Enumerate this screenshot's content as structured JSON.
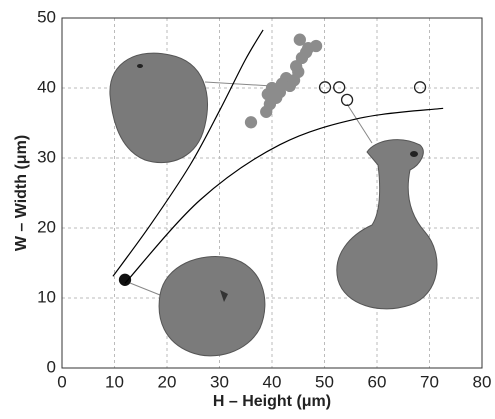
{
  "chart_data": {
    "type": "scatter",
    "x_label": "H – Height (μm)",
    "y_label": "W – Width (μm)",
    "xlim": [
      0,
      80
    ],
    "ylim": [
      0,
      50
    ],
    "xticks": [
      0,
      10,
      20,
      30,
      40,
      50,
      60,
      70,
      80
    ],
    "yticks": [
      0,
      10,
      20,
      30,
      40,
      50
    ],
    "grid": true,
    "series": [
      {
        "style": "point",
        "fill": "#8c8c8c",
        "color": "#8c8c8c",
        "x": [
          36.0,
          38.9,
          39.6,
          39.2,
          40.0,
          40.8,
          41.5,
          41.9,
          42.7,
          43.4,
          44.2,
          45.0,
          44.6,
          45.7,
          46.5,
          45.3,
          46.9,
          48.4
        ],
        "y": [
          35.1,
          36.6,
          37.7,
          39.1,
          40.0,
          38.6,
          39.4,
          40.6,
          41.4,
          40.3,
          41.1,
          42.3,
          43.1,
          44.3,
          45.1,
          46.9,
          45.7,
          46.0
        ]
      },
      {
        "style": "point",
        "fill": "none",
        "color": "#222222",
        "x": [
          50.1,
          52.8,
          54.3,
          68.2
        ],
        "y": [
          40.1,
          40.1,
          38.3,
          40.1
        ]
      },
      {
        "style": "point",
        "fill": "#111111",
        "color": "#111111",
        "x": [
          12.0
        ],
        "y": [
          12.6
        ]
      },
      {
        "style": "line",
        "color": "#000000",
        "x": [
          9.7,
          16.8,
          24.4,
          30.1,
          34.9,
          38.3
        ],
        "y": [
          13.1,
          20.4,
          29.0,
          36.9,
          44.0,
          48.3
        ]
      },
      {
        "style": "line",
        "color": "#000000",
        "x": [
          12.0,
          26.3,
          41.5,
          56.8,
          72.6
        ],
        "y": [
          12.1,
          24.0,
          31.9,
          35.7,
          37.1
        ]
      }
    ]
  }
}
